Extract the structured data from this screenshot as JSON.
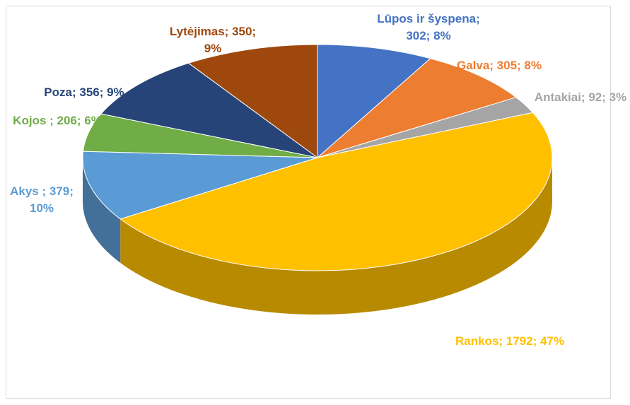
{
  "chart_data": {
    "type": "pie3d",
    "categories": [
      "Lūpos ir šyspena",
      "Galva",
      "Antakiai",
      "Rankos",
      "Akys",
      "Kojos",
      "Poza",
      "Lytėjimas"
    ],
    "values": [
      302,
      305,
      92,
      1792,
      379,
      206,
      356,
      350
    ],
    "value_labels": [
      "Lūpos ir šyspena; 302; 8%",
      "Galva; 305; 8%",
      "Antakiai; 92; 3%",
      "Rankos; 1792; 47%",
      "Akys ; 379; 10%",
      "Kojos ; 206; 6%",
      "Poza; 356; 9%",
      "Lytėjimas; 350; 9%"
    ],
    "colors": [
      "#4472c4",
      "#ed7d31",
      "#a5a5a5",
      "#ffc000",
      "#5b9bd5",
      "#70ad47",
      "#264478",
      "#9e480e"
    ]
  }
}
